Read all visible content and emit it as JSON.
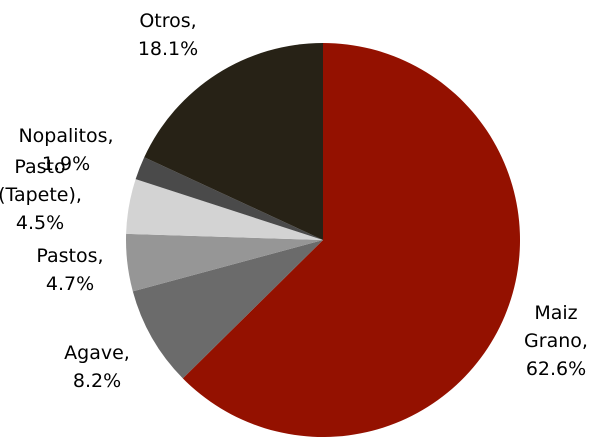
{
  "chart_data": {
    "type": "pie",
    "title": "",
    "slices": [
      {
        "label": "Maiz Grano",
        "value": 62.6,
        "display": "62.6%",
        "color": "#941100"
      },
      {
        "label": "Agave",
        "value": 8.2,
        "display": "8.2%",
        "color": "#6b6b6b"
      },
      {
        "label": "Pastos",
        "value": 4.7,
        "display": "4.7%",
        "color": "#969696"
      },
      {
        "label": "Pasto (Tapete)",
        "value": 4.5,
        "display": "4.5%",
        "color": "#d3d3d3"
      },
      {
        "label": "Nopalitos",
        "value": 1.9,
        "display": "1.9%",
        "color": "#4a4a4a"
      },
      {
        "label": "Otros",
        "value": 18.1,
        "display": "18.1%",
        "color": "#272216"
      }
    ],
    "label_lines": [
      [
        "Maiz",
        "Grano,",
        "62.6%"
      ],
      [
        "Agave,",
        "8.2%"
      ],
      [
        "Pastos,",
        "4.7%"
      ],
      [
        "Pasto",
        "(Tapete),",
        "4.5%"
      ],
      [
        "Nopalitos,",
        "1.9%"
      ],
      [
        "Otros,",
        "18.1%"
      ]
    ],
    "legend": false
  }
}
